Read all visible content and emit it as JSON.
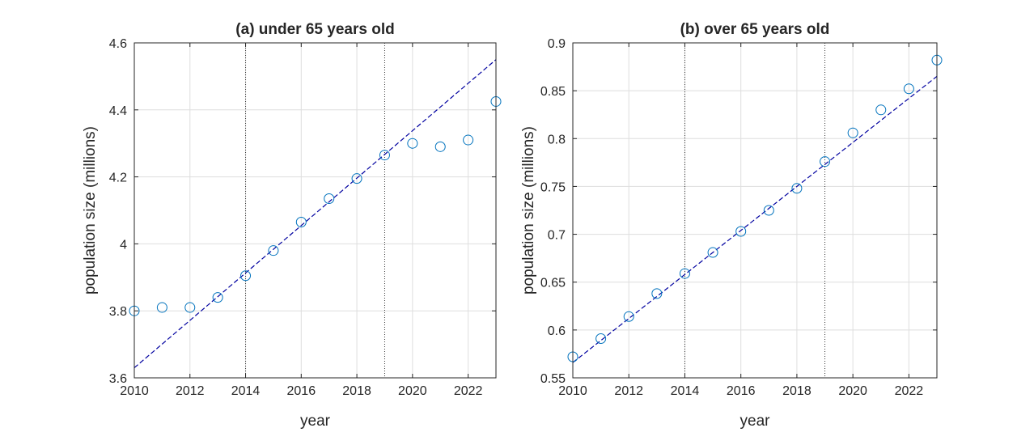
{
  "chart_data": [
    {
      "type": "scatter",
      "title": "(a) under 65 years old",
      "xlabel": "year",
      "ylabel": "population size (millions)",
      "xlim": [
        2010,
        2023
      ],
      "ylim": [
        3.6,
        4.6
      ],
      "xticks": [
        2010,
        2012,
        2014,
        2016,
        2018,
        2020,
        2022
      ],
      "xtick_labels": [
        "2010",
        "2012",
        "2014",
        "2016",
        "2018",
        "2020",
        "2022"
      ],
      "yticks": [
        3.6,
        3.8,
        4.0,
        4.2,
        4.4,
        4.6
      ],
      "ytick_labels": [
        "3.6",
        "3.8",
        "4",
        "4.2",
        "4.4",
        "4.6"
      ],
      "grid": true,
      "vertical_lines": [
        2014,
        2019
      ],
      "series": [
        {
          "kind": "markers",
          "x": [
            2010,
            2011,
            2012,
            2013,
            2014,
            2015,
            2016,
            2017,
            2018,
            2019,
            2020,
            2021,
            2022,
            2023
          ],
          "y": [
            3.8,
            3.81,
            3.81,
            3.84,
            3.905,
            3.98,
            4.065,
            4.135,
            4.195,
            4.265,
            4.3,
            4.29,
            4.31,
            4.425
          ]
        },
        {
          "kind": "fit-line",
          "x": [
            2010,
            2023
          ],
          "y": [
            3.63,
            4.55
          ]
        }
      ]
    },
    {
      "type": "scatter",
      "title": "(b) over 65 years old",
      "xlabel": "year",
      "ylabel": "population size (millions)",
      "xlim": [
        2010,
        2023
      ],
      "ylim": [
        0.55,
        0.9
      ],
      "xticks": [
        2010,
        2012,
        2014,
        2016,
        2018,
        2020,
        2022
      ],
      "xtick_labels": [
        "2010",
        "2012",
        "2014",
        "2016",
        "2018",
        "2020",
        "2022"
      ],
      "yticks": [
        0.55,
        0.6,
        0.65,
        0.7,
        0.75,
        0.8,
        0.85,
        0.9
      ],
      "ytick_labels": [
        "0.55",
        "0.6",
        "0.65",
        "0.7",
        "0.75",
        "0.8",
        "0.85",
        "0.9"
      ],
      "grid": true,
      "vertical_lines": [
        2014,
        2019
      ],
      "series": [
        {
          "kind": "markers",
          "x": [
            2010,
            2011,
            2012,
            2013,
            2014,
            2015,
            2016,
            2017,
            2018,
            2019,
            2020,
            2021,
            2022,
            2023
          ],
          "y": [
            0.572,
            0.591,
            0.614,
            0.638,
            0.659,
            0.681,
            0.703,
            0.725,
            0.748,
            0.776,
            0.806,
            0.83,
            0.852,
            0.882
          ]
        },
        {
          "kind": "fit-line",
          "x": [
            2010,
            2023
          ],
          "y": [
            0.566,
            0.865
          ]
        }
      ]
    }
  ],
  "colors": {
    "marker": "#0072BD",
    "fit_line": "#0000A0"
  }
}
